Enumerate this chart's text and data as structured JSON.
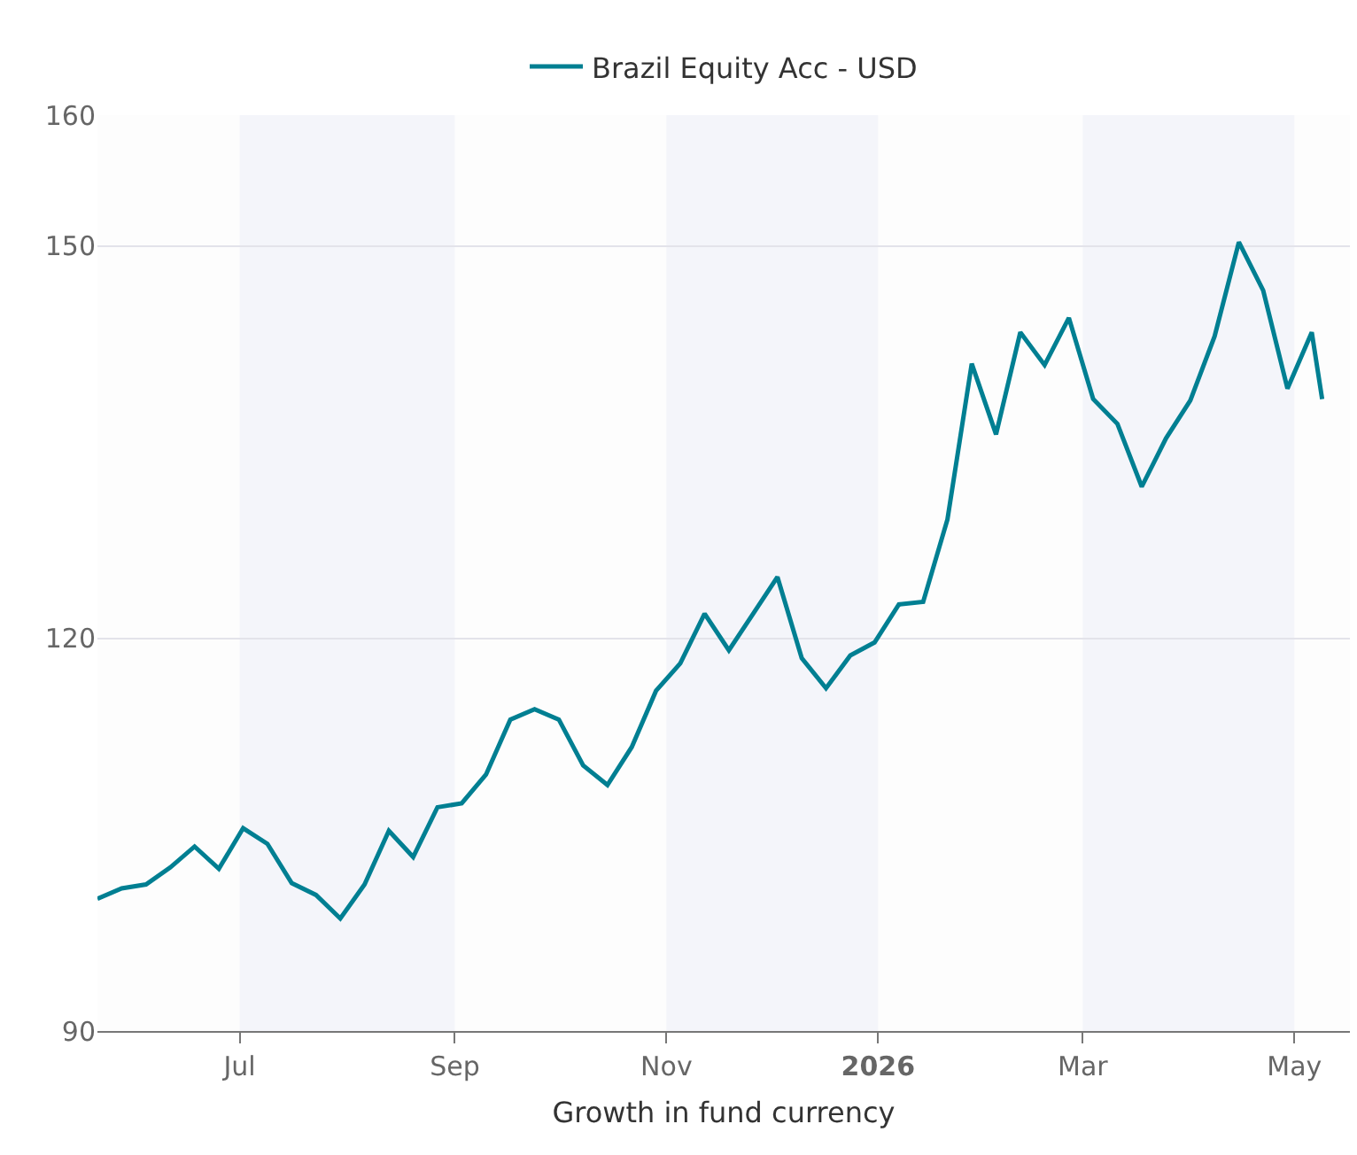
{
  "chart_data": {
    "type": "line",
    "xlabel": "Growth in fund currency",
    "x": [
      "2025-05-21",
      "2025-05-28",
      "2025-06-04",
      "2025-06-11",
      "2025-06-18",
      "2025-06-25",
      "2025-07-02",
      "2025-07-09",
      "2025-07-16",
      "2025-07-23",
      "2025-07-30",
      "2025-08-06",
      "2025-08-13",
      "2025-08-20",
      "2025-08-27",
      "2025-09-03",
      "2025-09-10",
      "2025-09-17",
      "2025-09-24",
      "2025-10-01",
      "2025-10-08",
      "2025-10-15",
      "2025-10-22",
      "2025-10-29",
      "2025-11-05",
      "2025-11-12",
      "2025-11-19",
      "2025-11-26",
      "2025-12-03",
      "2025-12-10",
      "2025-12-17",
      "2025-12-24",
      "2025-12-31",
      "2026-01-07",
      "2026-01-14",
      "2026-01-21",
      "2026-01-28",
      "2026-02-04",
      "2026-02-11",
      "2026-02-18",
      "2026-02-25",
      "2026-03-04",
      "2026-03-11",
      "2026-03-18",
      "2026-03-25",
      "2026-04-01",
      "2026-04-08",
      "2026-04-15",
      "2026-04-22",
      "2026-04-29",
      "2026-05-06",
      "2026-05-09"
    ],
    "series": [
      {
        "name": "Brazil Equity Acc - USD",
        "color": "#007f92",
        "values": [
          100.1,
          100.9,
          101.2,
          102.5,
          104.1,
          102.4,
          105.5,
          104.3,
          101.3,
          100.4,
          98.6,
          101.2,
          105.3,
          103.3,
          107.1,
          107.4,
          109.6,
          113.8,
          114.6,
          113.8,
          110.3,
          108.8,
          111.7,
          116.0,
          118.1,
          121.9,
          119.1,
          121.9,
          124.7,
          118.5,
          116.2,
          118.7,
          119.7,
          122.6,
          122.8,
          129.1,
          141.0,
          135.6,
          143.4,
          140.9,
          144.5,
          138.3,
          136.4,
          131.6,
          135.3,
          138.2,
          143.1,
          150.3,
          146.6,
          139.1,
          143.4,
          138.3
        ]
      }
    ],
    "xlim": [
      "2025-05-21",
      "2026-05-17"
    ],
    "xticks": [
      {
        "value": "2025-07-01",
        "label": "Jul"
      },
      {
        "value": "2025-09-01",
        "label": "Sep"
      },
      {
        "value": "2025-11-01",
        "label": "Nov"
      },
      {
        "value": "2026-01-01",
        "label": "2026"
      },
      {
        "value": "2026-03-01",
        "label": "Mar"
      },
      {
        "value": "2026-05-01",
        "label": "May"
      }
    ],
    "ylim": [
      90,
      160
    ],
    "yticks": [
      90,
      120,
      150,
      160
    ],
    "grid": "y",
    "legend": "top",
    "marker": "none",
    "line_style": "solid",
    "bands": [
      {
        "axis": "x",
        "from": "2025-07-01",
        "to": "2025-09-01",
        "color": "#f4f5fa"
      },
      {
        "axis": "x",
        "from": "2025-11-01",
        "to": "2026-01-01",
        "color": "#f4f5fa"
      },
      {
        "axis": "x",
        "from": "2026-03-01",
        "to": "2026-05-01",
        "color": "#f4f5fa"
      }
    ]
  }
}
